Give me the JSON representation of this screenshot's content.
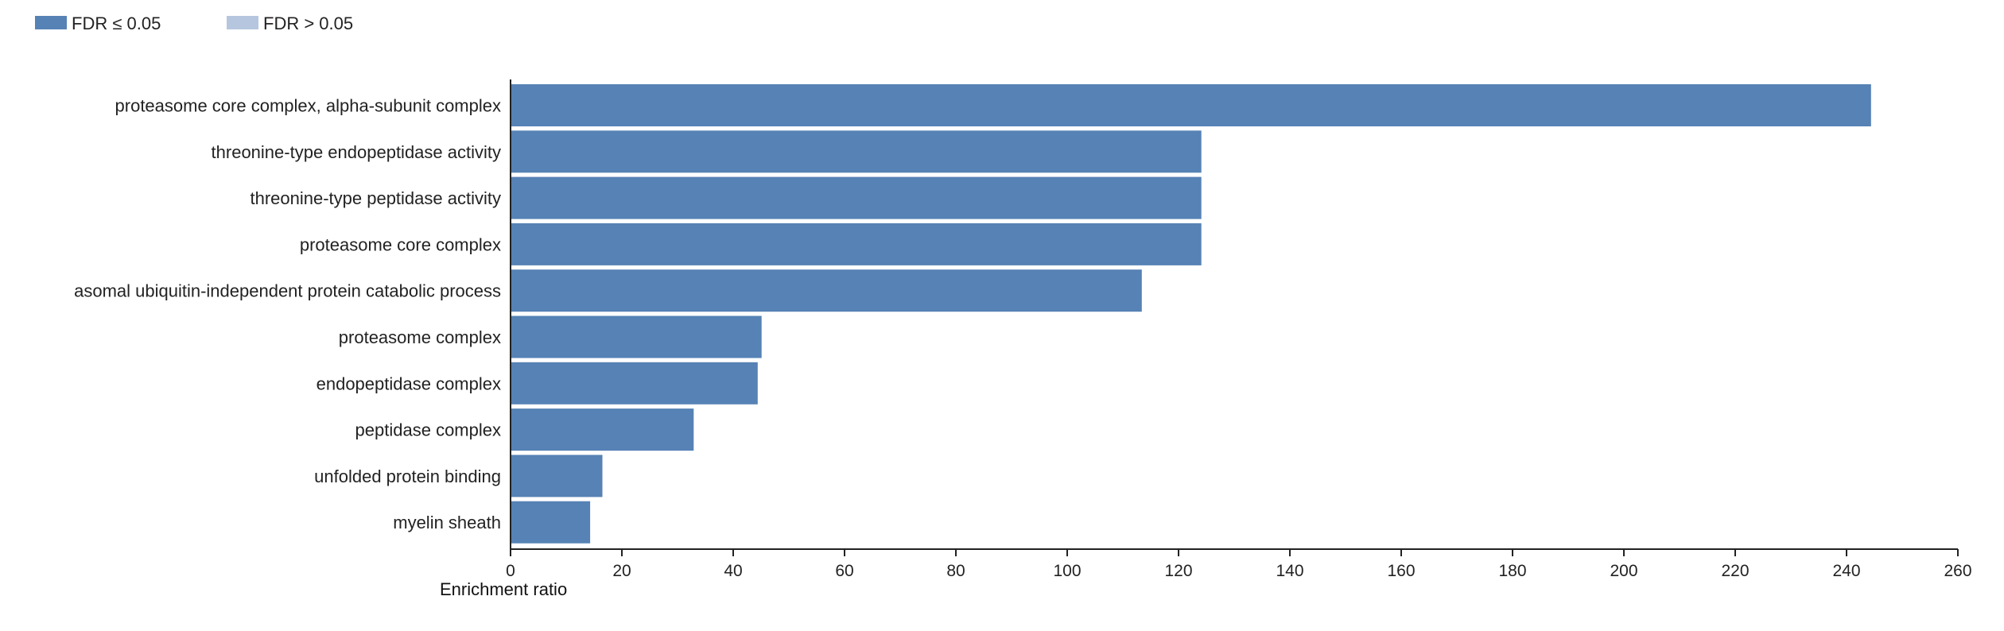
{
  "legend": {
    "items": [
      {
        "label": "FDR ≤ 0.05",
        "color": "#5682b5"
      },
      {
        "label": "FDR > 0.05",
        "color": "#b6c6df"
      }
    ]
  },
  "chart_data": {
    "type": "bar",
    "orientation": "horizontal",
    "title": "",
    "xlabel": "Enrichment ratio",
    "ylabel": "",
    "xlim": [
      0,
      260
    ],
    "xticks": [
      0,
      20,
      40,
      60,
      80,
      100,
      120,
      140,
      160,
      180,
      200,
      220,
      240,
      260
    ],
    "grid": false,
    "legend_position": "top-left",
    "categories": [
      "proteasome core complex, alpha-subunit complex",
      "threonine-type endopeptidase activity",
      "threonine-type peptidase activity",
      "proteasome core complex",
      "asomal ubiquitin-independent protein catabolic process",
      "proteasome complex",
      "endopeptidase complex",
      "peptidase complex",
      "unfolded protein binding",
      "myelin sheath"
    ],
    "values": [
      244.4,
      124.1,
      124.1,
      124.1,
      113.4,
      45.1,
      44.4,
      32.9,
      16.5,
      14.3
    ],
    "significant": [
      true,
      true,
      true,
      true,
      true,
      true,
      true,
      true,
      true,
      true
    ]
  }
}
